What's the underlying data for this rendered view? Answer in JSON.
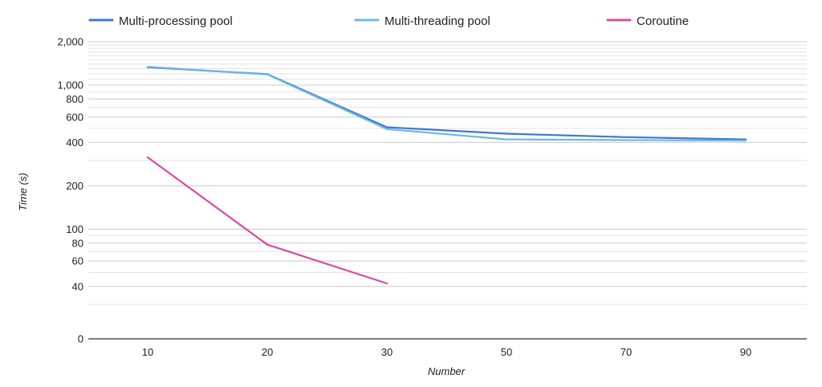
{
  "chart_data": {
    "type": "line",
    "title": "",
    "xlabel": "Number",
    "ylabel": "Time (s)",
    "y_scale": "log",
    "grid": true,
    "legend_position": "top",
    "categories": [
      "10",
      "20",
      "30",
      "50",
      "70",
      "90"
    ],
    "y_ticks": [
      {
        "value": 2000,
        "label": "2,000"
      },
      {
        "value": 1000,
        "label": "1,000"
      },
      {
        "value": 800,
        "label": "800"
      },
      {
        "value": 600,
        "label": "600"
      },
      {
        "value": 400,
        "label": "400"
      },
      {
        "value": 200,
        "label": "200"
      },
      {
        "value": 100,
        "label": "100"
      },
      {
        "value": 80,
        "label": "80"
      },
      {
        "value": 60,
        "label": "60"
      },
      {
        "value": 40,
        "label": "40"
      },
      {
        "value": 0,
        "label": "0"
      }
    ],
    "series": [
      {
        "name": "Multi-processing pool",
        "color": "#3c78d8",
        "values": [
          1330,
          1190,
          510,
          460,
          435,
          420
        ]
      },
      {
        "name": "Multi-threading pool",
        "color": "#6fb8e0",
        "values": [
          1340,
          1185,
          495,
          420,
          415,
          412
        ]
      },
      {
        "name": "Coroutine",
        "color": "#d64ca0",
        "values": [
          315,
          78,
          42,
          null,
          null,
          null
        ]
      }
    ]
  }
}
